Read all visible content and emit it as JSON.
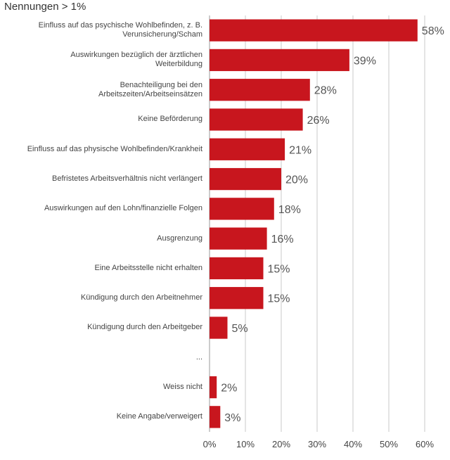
{
  "chart_data": {
    "type": "barh",
    "subtitle": "Nennungen > 1%",
    "categories": [
      "Einfluss auf das psychische Wohlbefinden, z. B. Verunsicherung/Scham",
      "Auswirkungen bezüglich der ärztlichen Weiterbildung",
      "Benachteiligung bei den Arbeitszeiten/Arbeitseinsätzen",
      "Keine Beförderung",
      "Einfluss auf das physische Wohlbefinden/Krankheit",
      "Befristetes Arbeitsverhältnis nicht verlängert",
      "Auswirkungen auf den Lohn/finanzielle Folgen",
      "Ausgrenzung",
      "Eine Arbeitsstelle nicht erhalten",
      "Kündigung durch den Arbeitnehmer",
      "Kündigung durch den Arbeitgeber",
      "...",
      "Weiss nicht",
      "Keine Angabe/verweigert"
    ],
    "values": [
      58,
      39,
      28,
      26,
      21,
      20,
      18,
      16,
      15,
      15,
      5,
      null,
      2,
      3
    ],
    "value_labels": [
      "58%",
      "39%",
      "28%",
      "26%",
      "21%",
      "20%",
      "18%",
      "16%",
      "15%",
      "15%",
      "5%",
      null,
      "2%",
      "3%"
    ],
    "color": "#c8161e",
    "xlim": [
      0,
      60
    ],
    "xticks": [
      {
        "value": 0,
        "label": "0%"
      },
      {
        "value": 10,
        "label": "10%"
      },
      {
        "value": 20,
        "label": "20%"
      },
      {
        "value": 30,
        "label": "30%"
      },
      {
        "value": 40,
        "label": "40%"
      },
      {
        "value": 50,
        "label": "50%"
      },
      {
        "value": 60,
        "label": "60%"
      }
    ],
    "grid": true
  }
}
